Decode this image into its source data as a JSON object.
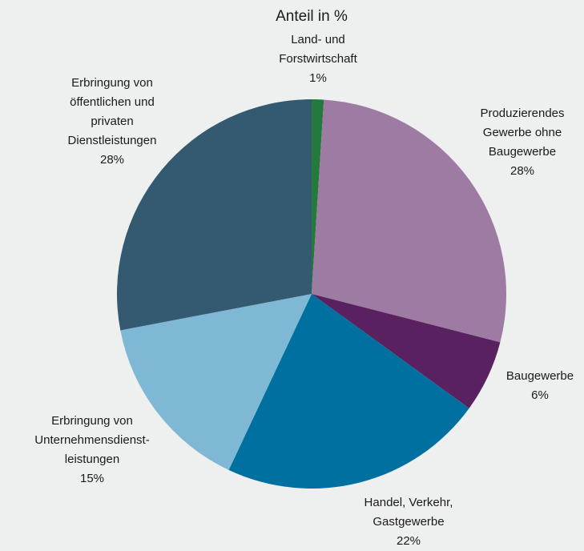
{
  "chart_data": {
    "type": "pie",
    "title": "Anteil in %",
    "categories": [
      "Land- und\nForstwirtschaft",
      "Produzierendes\nGewerbe ohne\nBaugewerbe",
      "Baugewerbe",
      "Handel, Verkehr,\nGastgewerbe",
      "Erbringung von\nUnternehmensdienst-\nleistungen",
      "Erbringung von\nöffentlichen und\nprivaten\nDienstleistungen"
    ],
    "values": [
      1,
      28,
      6,
      22,
      15,
      28
    ],
    "value_labels": [
      "1%",
      "28%",
      "6%",
      "22%",
      "15%",
      "28%"
    ],
    "colors": [
      "#237a3b",
      "#9e7ba3",
      "#5a2161",
      "#0070a1",
      "#7fb8d5",
      "#345a71"
    ]
  }
}
